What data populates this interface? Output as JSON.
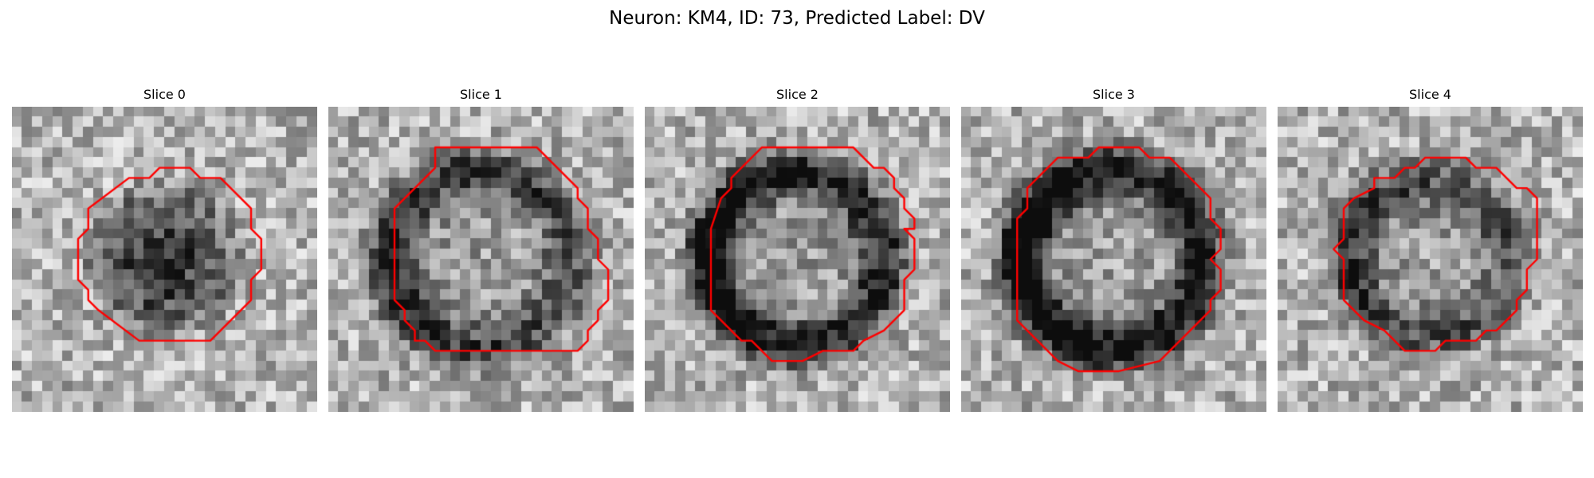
{
  "figure": {
    "title": "Neuron: KM4, ID: 73, Predicted Label: DV"
  },
  "colors": {
    "contour": "#ff0000",
    "background": "#ffffff"
  },
  "image": {
    "grid_size": 30,
    "colormap": "grayscale"
  },
  "panels": [
    {
      "title": "Slice 0",
      "mask_radius": 8.4,
      "dark_side": "center",
      "ring_contrast": 0.45,
      "contour": [
        [
          14,
          5.5
        ],
        [
          17,
          5.5
        ],
        [
          18,
          6.5
        ],
        [
          20,
          6.5
        ],
        [
          23,
          9.5
        ],
        [
          23,
          11.5
        ],
        [
          24,
          12.5
        ],
        [
          24,
          15.5
        ],
        [
          23,
          16.5
        ],
        [
          23,
          18.5
        ],
        [
          19,
          22.5
        ],
        [
          12,
          22.5
        ],
        [
          8,
          19.5
        ],
        [
          7,
          18.5
        ],
        [
          7,
          17.5
        ],
        [
          6,
          16.5
        ],
        [
          6,
          12.5
        ],
        [
          7,
          11.5
        ],
        [
          7,
          9.5
        ],
        [
          11,
          6.5
        ],
        [
          13,
          6.5
        ]
      ]
    },
    {
      "title": "Slice 1",
      "mask_radius": 10.2,
      "dark_side": "left",
      "ring_contrast": 0.4,
      "contour": [
        [
          10,
          3.5
        ],
        [
          20,
          3.5
        ],
        [
          24,
          7.5
        ],
        [
          24,
          8.5
        ],
        [
          25,
          9.5
        ],
        [
          25,
          11.5
        ],
        [
          26,
          12.5
        ],
        [
          26,
          14.5
        ],
        [
          27,
          15.5
        ],
        [
          27,
          18.5
        ],
        [
          26,
          19.5
        ],
        [
          26,
          20.5
        ],
        [
          25,
          21.5
        ],
        [
          25,
          22.5
        ],
        [
          24,
          23.5
        ],
        [
          20,
          23.5
        ],
        [
          10,
          23.5
        ],
        [
          9,
          22.5
        ],
        [
          8,
          22.5
        ],
        [
          8,
          21.5
        ],
        [
          7,
          20.5
        ],
        [
          7,
          19.5
        ],
        [
          6,
          18.5
        ],
        [
          6,
          9.5
        ],
        [
          7,
          8.5
        ],
        [
          8,
          7.5
        ],
        [
          10,
          5.5
        ]
      ]
    },
    {
      "title": "Slice 2",
      "mask_radius": 10.0,
      "dark_side": "left",
      "ring_contrast": 0.55,
      "contour": [
        [
          11,
          3.5
        ],
        [
          20,
          3.5
        ],
        [
          22,
          5.5
        ],
        [
          23,
          5.5
        ],
        [
          24,
          6.5
        ],
        [
          24,
          7.5
        ],
        [
          25,
          8.5
        ],
        [
          25,
          9.5
        ],
        [
          26,
          10.5
        ],
        [
          26,
          11.5
        ],
        [
          25,
          11.5
        ],
        [
          26,
          12.5
        ],
        [
          26,
          15.5
        ],
        [
          25,
          16.5
        ],
        [
          25,
          19.5
        ],
        [
          23,
          21.5
        ],
        [
          21,
          22.5
        ],
        [
          20,
          23.5
        ],
        [
          17,
          23.5
        ],
        [
          15,
          24.5
        ],
        [
          12,
          24.5
        ],
        [
          10,
          22.5
        ],
        [
          9,
          22.5
        ],
        [
          7,
          20.5
        ],
        [
          6,
          19.5
        ],
        [
          6,
          18.5
        ],
        [
          6,
          13.5
        ],
        [
          6,
          11.5
        ],
        [
          7,
          8.5
        ],
        [
          8,
          7.5
        ],
        [
          8,
          6.5
        ],
        [
          10,
          4.5
        ]
      ]
    },
    {
      "title": "Slice 3",
      "mask_radius": 10.4,
      "dark_side": "left",
      "ring_contrast": 0.6,
      "contour": [
        [
          12,
          4.5
        ],
        [
          13,
          3.5
        ],
        [
          17,
          3.5
        ],
        [
          18,
          4.5
        ],
        [
          20,
          4.5
        ],
        [
          24,
          8.5
        ],
        [
          24,
          10.5
        ],
        [
          25,
          11.5
        ],
        [
          25,
          13.5
        ],
        [
          24,
          14.5
        ],
        [
          25,
          15.5
        ],
        [
          25,
          17.5
        ],
        [
          24,
          18.5
        ],
        [
          24,
          19.5
        ],
        [
          23,
          20.5
        ],
        [
          21,
          22.5
        ],
        [
          20,
          23.5
        ],
        [
          19,
          24.5
        ],
        [
          15,
          25.5
        ],
        [
          11,
          25.5
        ],
        [
          9,
          24.5
        ],
        [
          8,
          23.5
        ],
        [
          6,
          21.5
        ],
        [
          5,
          20.5
        ],
        [
          5,
          10.5
        ],
        [
          6,
          9.5
        ],
        [
          6,
          7.5
        ],
        [
          7,
          6.5
        ],
        [
          8,
          5.5
        ],
        [
          9,
          4.5
        ]
      ]
    },
    {
      "title": "Slice 4",
      "mask_radius": 9.0,
      "dark_side": "left",
      "ring_contrast": 0.35,
      "contour": [
        [
          13,
          5.5
        ],
        [
          14,
          4.5
        ],
        [
          18,
          4.5
        ],
        [
          19,
          5.5
        ],
        [
          21,
          5.5
        ],
        [
          23,
          7.5
        ],
        [
          24,
          7.5
        ],
        [
          25,
          8.5
        ],
        [
          25,
          10.5
        ],
        [
          25,
          14.5
        ],
        [
          24,
          15.5
        ],
        [
          24,
          17.5
        ],
        [
          23,
          18.5
        ],
        [
          23,
          19.5
        ],
        [
          22,
          20.5
        ],
        [
          21,
          21.5
        ],
        [
          20,
          21.5
        ],
        [
          19,
          22.5
        ],
        [
          16,
          22.5
        ],
        [
          15,
          23.5
        ],
        [
          12,
          23.5
        ],
        [
          11,
          22.5
        ],
        [
          10,
          21.5
        ],
        [
          8,
          20.5
        ],
        [
          6,
          18.5
        ],
        [
          6,
          14.5
        ],
        [
          5,
          13.5
        ],
        [
          6,
          12.5
        ],
        [
          6,
          9.5
        ],
        [
          7,
          8.5
        ],
        [
          9,
          7.5
        ],
        [
          9,
          6.5
        ],
        [
          11,
          6.5
        ],
        [
          12,
          5.5
        ]
      ]
    }
  ]
}
